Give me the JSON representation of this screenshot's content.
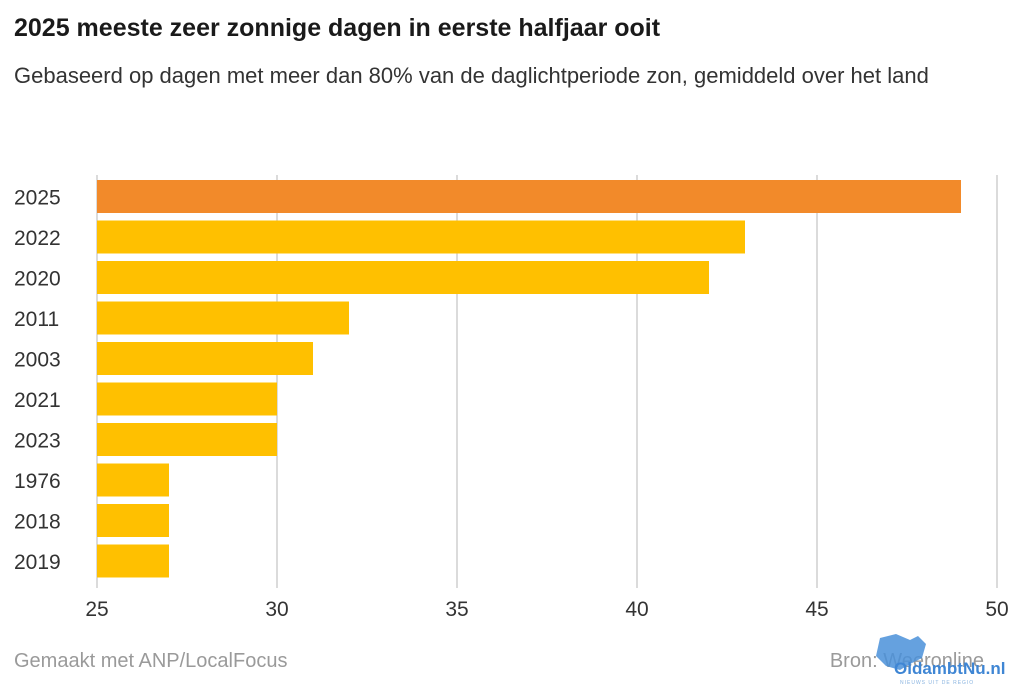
{
  "chart_data": {
    "type": "bar",
    "orientation": "horizontal",
    "title": "2025 meeste zeer zonnige dagen in eerste halfjaar ooit",
    "subtitle": "Gebaseerd op dagen met meer dan 80% van de daglichtperiode zon, gemiddeld over het land",
    "categories": [
      "2025",
      "2022",
      "2020",
      "2011",
      "2003",
      "2021",
      "2023",
      "1976",
      "2018",
      "2019"
    ],
    "values": [
      49,
      43,
      42,
      32,
      31,
      30,
      30,
      27,
      27,
      27
    ],
    "xlim": [
      25,
      50
    ],
    "xticks": [
      25,
      30,
      35,
      40,
      45,
      50
    ],
    "grid": "vertical",
    "colors": {
      "highlight": "#F28A2A",
      "default": "#FFC000",
      "grid": "#cfcfcf"
    },
    "highlight_category": "2025"
  },
  "footer": {
    "made_with": "Gemaakt met ANP/LocalFocus",
    "source": "Bron: Weeronline"
  },
  "watermark": {
    "name": "OldambtNu.nl",
    "tagline": "NIEUWS UIT DE REGIO",
    "icon": "province-map-icon"
  }
}
